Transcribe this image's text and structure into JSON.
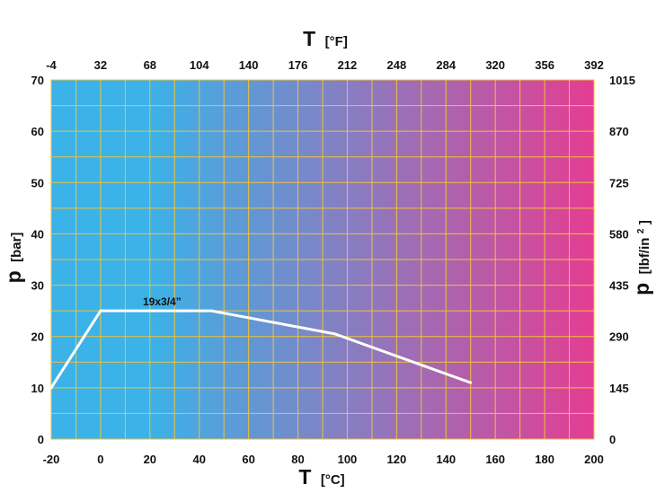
{
  "chart_data": {
    "type": "line",
    "x_axis": {
      "symbol": "T",
      "unit": "[°C]",
      "range": [
        -20,
        200
      ],
      "ticks": [
        -20,
        0,
        20,
        40,
        60,
        80,
        100,
        120,
        140,
        160,
        180,
        200
      ]
    },
    "x2_axis": {
      "symbol": "T",
      "unit": "[°F]",
      "ticks": [
        -4,
        32,
        68,
        104,
        140,
        176,
        212,
        248,
        284,
        320,
        356,
        392
      ]
    },
    "y_axis": {
      "symbol": "p",
      "unit": "[bar]",
      "range": [
        0,
        70
      ],
      "ticks": [
        0,
        10,
        20,
        30,
        40,
        50,
        60,
        70
      ]
    },
    "y2_axis": {
      "symbol": "p",
      "unit_main": "[lbf/in",
      "unit_sup": "2",
      "unit_end": "]",
      "ticks": [
        "0",
        "145",
        "290",
        "435",
        "580",
        "725",
        "870",
        "1015"
      ]
    },
    "grid": true,
    "background_gradient": [
      "#3bb2e8",
      "#e43d92"
    ],
    "grid_color": "#f0c23a",
    "series": [
      {
        "name": "19x3/4”",
        "color": "#ffffff",
        "points": [
          [
            -20,
            10
          ],
          [
            0,
            25
          ],
          [
            45,
            25
          ],
          [
            95,
            20.5
          ],
          [
            150,
            11
          ]
        ]
      }
    ]
  }
}
